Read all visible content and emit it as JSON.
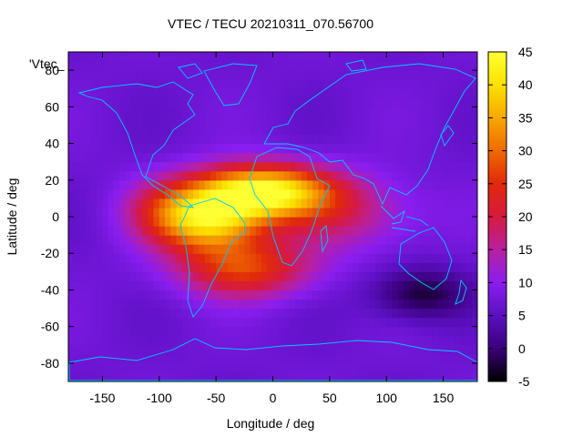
{
  "chart_data": {
    "type": "heatmap",
    "title": "VTEC / TECU 20210311_070.56700",
    "xlabel": "Longitude / deg",
    "ylabel": "Latitude / deg",
    "legend_key": "'Vtec_",
    "xlim": [
      -180,
      180
    ],
    "ylim": [
      -90,
      90
    ],
    "xticks": [
      -150,
      -100,
      -50,
      0,
      50,
      100,
      150
    ],
    "yticks": [
      -80,
      -60,
      -40,
      -20,
      0,
      20,
      40,
      60,
      80
    ],
    "colorbar": {
      "range": [
        -5,
        45
      ],
      "ticks": [
        -5,
        0,
        5,
        10,
        15,
        20,
        25,
        30,
        35,
        40,
        45
      ],
      "palette": [
        "#000000",
        "#3a007a",
        "#5a10c0",
        "#8a1ef0",
        "#b8209f",
        "#d61a40",
        "#e0290a",
        "#ee6a00",
        "#f7a800",
        "#fbe200",
        "#ffff33"
      ]
    },
    "grid": false,
    "background_tecu": 7,
    "features": [
      {
        "name": "equatorial-anomaly-peak",
        "lon": -10,
        "lat": 14,
        "peak_tecu": 43,
        "sigma_lon": 42,
        "sigma_lat": 10
      },
      {
        "name": "south-american-anomaly",
        "lon": -55,
        "lat": -2,
        "peak_tecu": 36,
        "sigma_lon": 32,
        "sigma_lat": 12
      },
      {
        "name": "southern-crest",
        "lon": -25,
        "lat": -28,
        "peak_tecu": 26,
        "sigma_lon": 40,
        "sigma_lat": 11
      },
      {
        "name": "african-indian-tongue",
        "lon": 55,
        "lat": 2,
        "peak_tecu": 17,
        "sigma_lon": 48,
        "sigma_lat": 14
      },
      {
        "name": "central-american-region",
        "lon": -95,
        "lat": 3,
        "peak_tecu": 17,
        "sigma_lon": 26,
        "sigma_lat": 12
      },
      {
        "name": "pacific-depletion",
        "lon": 130,
        "lat": -42,
        "peak_tecu": -3,
        "sigma_lon": 30,
        "sigma_lat": 10
      }
    ]
  }
}
